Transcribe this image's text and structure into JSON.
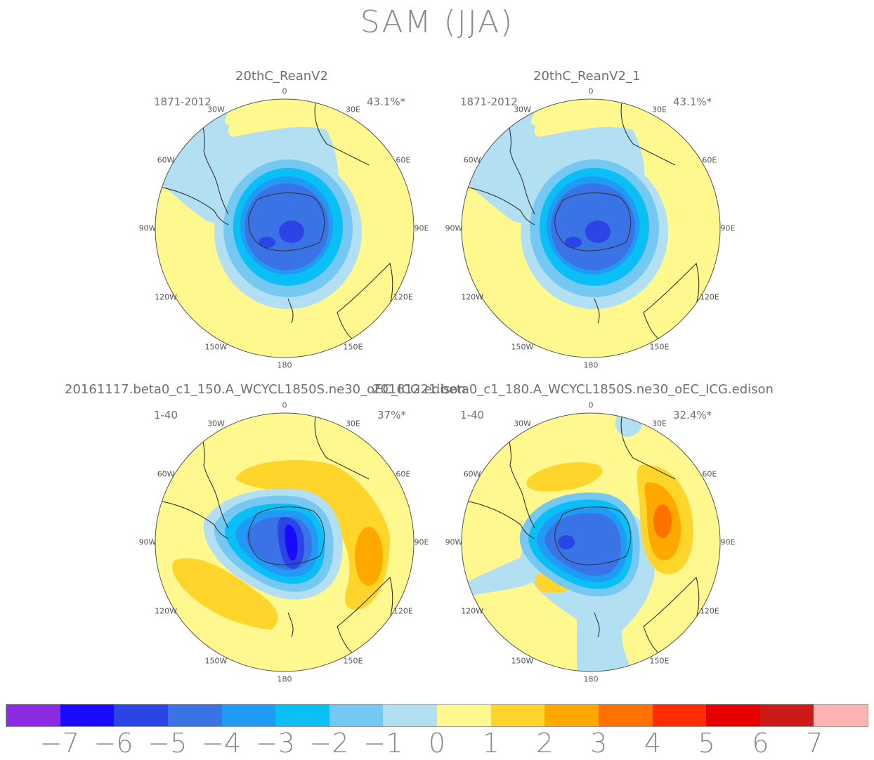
{
  "title": "SAM (JJA)",
  "panels": [
    {
      "title": "20thC_ReanV2",
      "years": "1871-2012",
      "pct": "43.1%*"
    },
    {
      "title": "20thC_ReanV2_1",
      "years": "1871-2012",
      "pct": "43.1%*"
    },
    {
      "title": "20161117.beta0_c1_150.A_WCYCL1850S.ne30_oEC_ICG.edison",
      "years": "1-40",
      "pct": "37%*"
    },
    {
      "title": "20161221.beta0_c1_180.A_WCYCL1850S.ne30_oEC_ICG.edison",
      "years": "1-40",
      "pct": "32.4%*"
    }
  ],
  "lon_labels": [
    "0",
    "30E",
    "60E",
    "90E",
    "120E",
    "150E",
    "180",
    "150W",
    "120W",
    "90W",
    "60W",
    "30W"
  ],
  "colorbar": {
    "colors": [
      "#8a2be2",
      "#1a0aff",
      "#2b44e6",
      "#3a73e6",
      "#1f9bf5",
      "#0abff5",
      "#74c8f2",
      "#b2dff2",
      "#fff88f",
      "#ffd42b",
      "#ffa900",
      "#ff7200",
      "#ff2c00",
      "#e60000",
      "#cc1a1a",
      "#ffb3b3"
    ],
    "labels": [
      "−7",
      "−6",
      "−5",
      "−4",
      "−3",
      "−2",
      "−1",
      "0",
      "1",
      "2",
      "3",
      "4",
      "5",
      "6",
      "7"
    ]
  }
}
